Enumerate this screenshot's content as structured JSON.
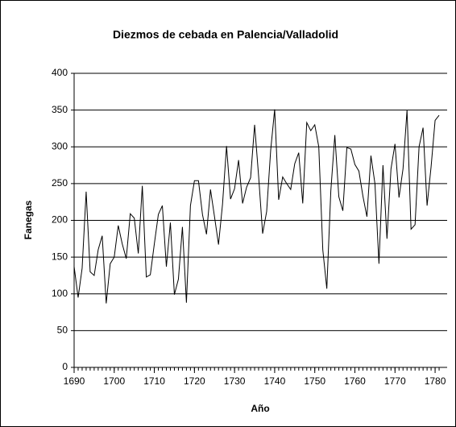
{
  "chart_data": {
    "type": "line",
    "title": "Diezmos de cebada en Palencia/Valladolid",
    "xlabel": "Año",
    "ylabel": "Fanegas",
    "x": [
      1690,
      1691,
      1692,
      1693,
      1694,
      1695,
      1696,
      1697,
      1698,
      1699,
      1700,
      1701,
      1702,
      1703,
      1704,
      1705,
      1706,
      1707,
      1708,
      1709,
      1710,
      1711,
      1712,
      1713,
      1714,
      1715,
      1716,
      1717,
      1718,
      1719,
      1720,
      1721,
      1722,
      1723,
      1724,
      1725,
      1726,
      1727,
      1728,
      1729,
      1730,
      1731,
      1732,
      1733,
      1734,
      1735,
      1736,
      1737,
      1738,
      1739,
      1740,
      1741,
      1742,
      1743,
      1744,
      1745,
      1746,
      1747,
      1748,
      1749,
      1750,
      1751,
      1752,
      1753,
      1754,
      1755,
      1756,
      1757,
      1758,
      1759,
      1760,
      1761,
      1762,
      1763,
      1764,
      1765,
      1766,
      1767,
      1768,
      1769,
      1770,
      1771,
      1772,
      1773,
      1774,
      1775,
      1776,
      1777,
      1778,
      1779,
      1780,
      1781
    ],
    "series": [
      {
        "name": "Fanegas",
        "color": "#000000",
        "values": [
          137,
          95,
          135,
          239,
          130,
          125,
          160,
          179,
          87,
          141,
          150,
          193,
          168,
          148,
          209,
          203,
          155,
          247,
          123,
          126,
          168,
          208,
          220,
          137,
          197,
          99,
          120,
          191,
          88,
          220,
          254,
          254,
          208,
          181,
          242,
          205,
          167,
          222,
          301,
          229,
          243,
          282,
          223,
          245,
          258,
          330,
          260,
          182,
          212,
          295,
          351,
          228,
          259,
          250,
          242,
          277,
          292,
          223,
          333,
          322,
          330,
          300,
          160,
          107,
          240,
          316,
          232,
          213,
          299,
          297,
          276,
          267,
          233,
          205,
          288,
          250,
          141,
          275,
          175,
          270,
          304,
          231,
          270,
          350,
          188,
          194,
          300,
          326,
          220,
          273,
          336,
          343
        ]
      }
    ],
    "xlim": [
      1690,
      1783
    ],
    "xticks": [
      1690,
      1700,
      1710,
      1720,
      1730,
      1740,
      1750,
      1760,
      1770,
      1780
    ],
    "ylim": [
      0,
      400
    ],
    "yticks": [
      0,
      50,
      100,
      150,
      200,
      250,
      300,
      350,
      400
    ],
    "grid": true
  }
}
